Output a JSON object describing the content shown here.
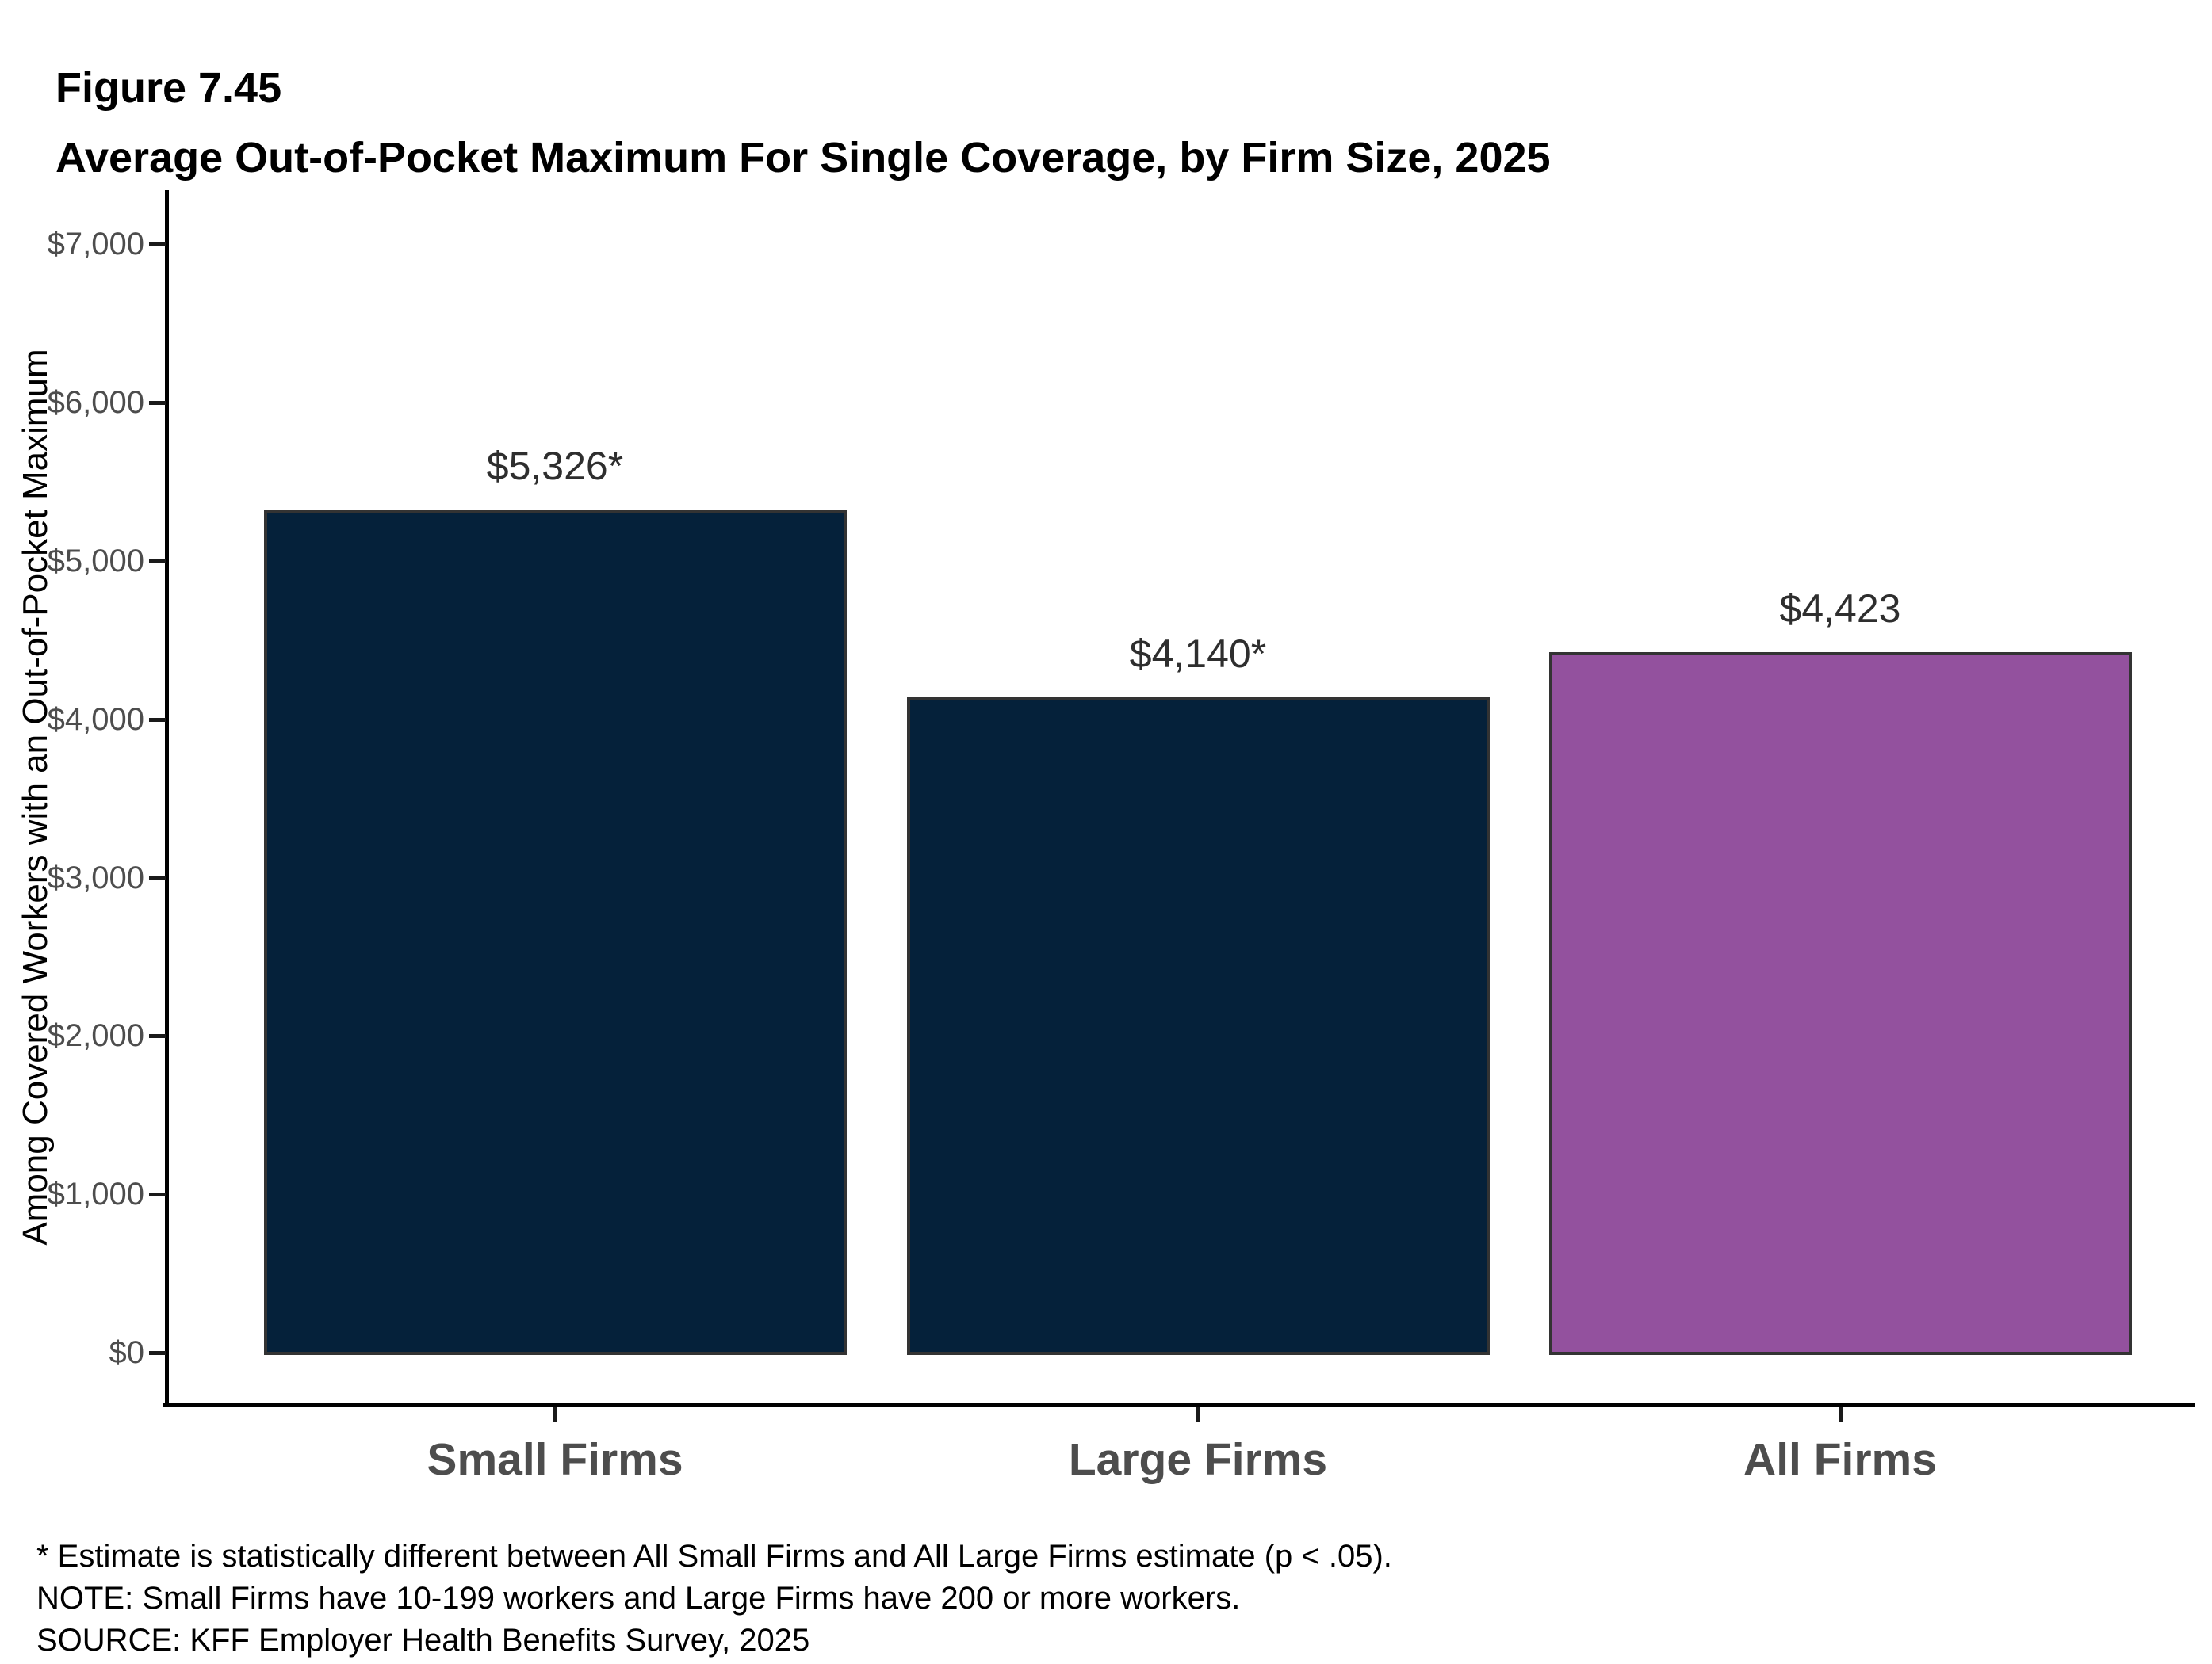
{
  "figure": {
    "label": "Figure 7.45",
    "title": "Average Out-of-Pocket Maximum For Single Coverage, by Firm Size, 2025"
  },
  "chart_data": {
    "type": "bar",
    "categories": [
      "Small Firms",
      "Large Firms",
      "All Firms"
    ],
    "values": [
      5326,
      4140,
      4423
    ],
    "value_labels": [
      "$5,326*",
      "$4,140*",
      "$4,423"
    ],
    "bar_colors": [
      "#05213A",
      "#05213A",
      "#93519E"
    ],
    "bar_border_color": "#333333",
    "title": "Average Out-of-Pocket Maximum For Single Coverage, by Firm Size, 2025",
    "xlabel": "",
    "ylabel": "Among Covered Workers with an Out-of-Pocket Maximum",
    "ylim": [
      0,
      7000
    ],
    "ytick_step": 1000,
    "ytick_labels": [
      "$0",
      "$1,000",
      "$2,000",
      "$3,000",
      "$4,000",
      "$5,000",
      "$6,000",
      "$7,000"
    ],
    "grid": false,
    "legend": false
  },
  "footnotes": [
    "* Estimate is statistically different between All Small Firms and All Large Firms estimate (p < .05).",
    "NOTE: Small Firms have 10-199 workers and Large Firms have 200 or more workers.",
    "SOURCE: KFF Employer Health Benefits Survey, 2025"
  ]
}
